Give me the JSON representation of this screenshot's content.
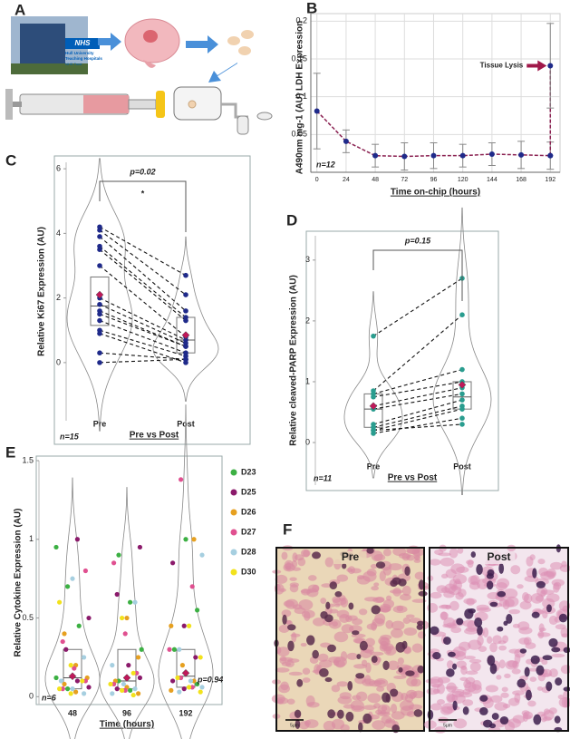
{
  "panel_labels": [
    "A",
    "B",
    "C",
    "D",
    "E",
    "F"
  ],
  "illustration": {
    "logo": "NHS",
    "lines": [
      "Hull University",
      "Teaching Hospitals",
      "NHS Trust"
    ]
  },
  "histology": {
    "panels": [
      {
        "title": "Pre",
        "scale": "5μm"
      },
      {
        "title": "Post",
        "scale": "5μm"
      }
    ]
  },
  "chart_data": [
    {
      "type": "line",
      "x_label": "Time on-chip (hours)",
      "y_label": "A490nm mg-1 (AU) LDH Expression",
      "n_label": "n=12",
      "annotation": "Tissue Lysis",
      "grid": true,
      "x": [
        0,
        24,
        48,
        72,
        96,
        120,
        144,
        168,
        192
      ],
      "xlim": [
        -5,
        200
      ],
      "xticks": [
        0,
        24,
        48,
        72,
        96,
        120,
        144,
        168,
        192
      ],
      "ylim": [
        0,
        0.21
      ],
      "yticks": [
        0.05,
        0.1,
        0.15,
        0.2
      ],
      "series": [
        {
          "color": "#8b2252",
          "marker_color": "#1f2a8a",
          "values": [
            0.081,
            0.041,
            0.022,
            0.021,
            0.022,
            0.022,
            0.024,
            0.023,
            0.022
          ],
          "errors": [
            0.05,
            0.015,
            0.015,
            0.018,
            0.017,
            0.015,
            0.015,
            0.018,
            0.018
          ]
        },
        {
          "color": "#8b2252",
          "marker_color": "#1f2a8a",
          "x": [
            192,
            192
          ],
          "values": [
            0.022,
            0.141
          ],
          "errors": [
            null,
            0.056
          ]
        }
      ]
    },
    {
      "type": "violin",
      "categories": [
        "Pre",
        "Post"
      ],
      "x_label": "Pre vs Post",
      "y_label": "Relative Ki67 Expression (AU)",
      "p_value": "p=0.02",
      "significance": "*",
      "n_label": "n=15",
      "paired": true,
      "point_color": "#1f2a8a",
      "mean_color": "#c0185a",
      "values": [
        [
          4.2,
          4.1,
          3.9,
          3.6,
          3.5,
          3.0,
          2.0,
          1.8,
          1.6,
          1.5,
          1.3,
          1.0,
          0.3,
          0.0,
          0.9
        ],
        [
          2.7,
          2.1,
          1.6,
          1.4,
          1.3,
          0.8,
          0.7,
          0.6,
          0.5,
          0.5,
          0.3,
          0.2,
          0.1,
          0.1,
          0.0
        ]
      ],
      "box": [
        {
          "q1": 1.15,
          "median": 1.75,
          "q3": 2.65,
          "mean": 2.1
        },
        {
          "q1": 0.3,
          "median": 0.7,
          "q3": 1.4,
          "mean": 0.85
        }
      ],
      "ylim": [
        -1.8,
        6.2
      ],
      "yticks": [
        0,
        2,
        4,
        6
      ]
    },
    {
      "type": "violin",
      "categories": [
        "Pre",
        "Post"
      ],
      "x_label": "Pre vs Post",
      "y_label": "Relative cleaved-PARP Expression (AU)",
      "p_value": "p=0.15",
      "n_label": "n=11",
      "paired": true,
      "point_color": "#2a9d8f",
      "mean_color": "#c0185a",
      "values": [
        [
          1.75,
          0.85,
          0.8,
          0.75,
          0.6,
          0.55,
          0.3,
          0.25,
          0.2,
          0.15,
          0.2
        ],
        [
          2.7,
          2.1,
          1.2,
          1.0,
          0.9,
          0.8,
          0.7,
          0.6,
          0.55,
          0.4,
          0.3
        ]
      ],
      "box": [
        {
          "q1": 0.25,
          "median": 0.55,
          "q3": 0.8,
          "mean": 0.6
        },
        {
          "q1": 0.55,
          "median": 0.75,
          "q3": 1.0,
          "mean": 0.95
        }
      ],
      "ylim": [
        -0.7,
        3.4
      ],
      "yticks": [
        0,
        1,
        2,
        3
      ]
    },
    {
      "type": "strip",
      "categories": [
        "48",
        "96",
        "192"
      ],
      "x_label": "Time (hours)",
      "y_label": "Relative Cytokine Expression (AU)",
      "p_value": "p=0.94",
      "n_label": "n=6",
      "mean_color": "#c0185a",
      "series": [
        {
          "name": "D23",
          "color": "#3cb043",
          "values": [
            [
              0.95,
              0.7,
              0.45,
              0.12,
              0.05
            ],
            [
              0.9,
              0.6,
              0.3,
              0.1,
              0.04
            ],
            [
              1.0,
              0.55,
              0.3,
              0.15,
              0.08
            ]
          ]
        },
        {
          "name": "D25",
          "color": "#8b1a6b",
          "values": [
            [
              1.0,
              0.5,
              0.3,
              0.1,
              0.06
            ],
            [
              0.95,
              0.65,
              0.2,
              0.12,
              0.05
            ],
            [
              0.85,
              0.45,
              0.25,
              0.1,
              0.05
            ]
          ]
        },
        {
          "name": "D26",
          "color": "#e6a020",
          "values": [
            [
              0.4,
              0.2,
              0.12,
              0.08,
              0.03
            ],
            [
              0.5,
              0.25,
              0.1,
              0.06,
              0.02
            ],
            [
              1.0,
              0.45,
              0.2,
              0.1,
              0.04
            ]
          ]
        },
        {
          "name": "D27",
          "color": "#e05090",
          "values": [
            [
              0.8,
              0.35,
              0.18,
              0.1,
              0.05
            ],
            [
              0.85,
              0.4,
              0.15,
              0.08,
              0.04
            ],
            [
              1.38,
              0.7,
              0.3,
              0.12,
              0.06
            ]
          ]
        },
        {
          "name": "D28",
          "color": "#a6cfe0",
          "values": [
            [
              0.75,
              0.25,
              0.1,
              0.05,
              0.02
            ],
            [
              0.6,
              0.2,
              0.08,
              0.05,
              0.02
            ],
            [
              0.9,
              0.3,
              0.1,
              0.06,
              0.03
            ]
          ]
        },
        {
          "name": "D30",
          "color": "#f2e21c",
          "values": [
            [
              0.6,
              0.2,
              0.1,
              0.05,
              0.02
            ],
            [
              0.5,
              0.15,
              0.08,
              0.04,
              0.01
            ],
            [
              0.45,
              0.25,
              0.12,
              0.06,
              0.03
            ]
          ]
        }
      ],
      "box": [
        {
          "q1": 0.05,
          "median": 0.12,
          "q3": 0.3,
          "mean": 0.13
        },
        {
          "q1": 0.05,
          "median": 0.1,
          "q3": 0.3,
          "mean": 0.12
        },
        {
          "q1": 0.06,
          "median": 0.13,
          "q3": 0.3,
          "mean": 0.15
        }
      ],
      "ylim": [
        -0.05,
        1.5
      ],
      "yticks": [
        0,
        0.5,
        1,
        1.5
      ]
    }
  ]
}
